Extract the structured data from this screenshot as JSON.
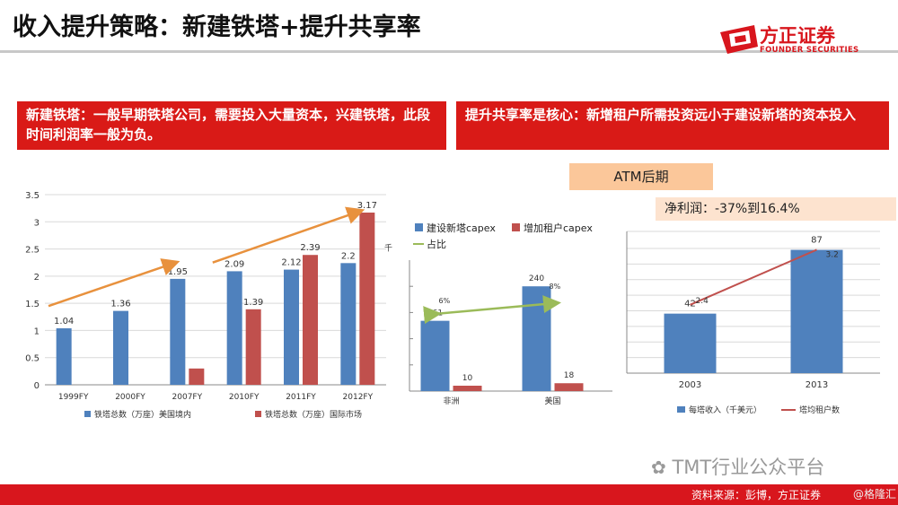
{
  "header": {
    "title": "收入提升策略：新建铁塔+提升共享率",
    "logo_name": "方正证券",
    "logo_sub": "FOUNDER SECURITIES"
  },
  "boxes": {
    "left": "新建铁塔：一般早期铁塔公司，需要投入大量资本，兴建铁塔，此段时间利润率一般为负。",
    "right": "提升共享率是核心：新增租户所需投资远小于建设新塔的资本投入"
  },
  "atm": {
    "label": "ATM后期",
    "net_profit": "净利润：-37%到16.4%"
  },
  "footer": {
    "source": "资料来源：彭博，方正证券",
    "watermark": "TMT行业公众平台",
    "watermark2": "@格隆汇"
  },
  "colors": {
    "blue": "#4f81bd",
    "red": "#c0504d",
    "orange": "#e8913d",
    "green": "#9bbb59",
    "brand": "#d8161d"
  },
  "chart_data": [
    {
      "type": "bar",
      "categories": [
        "1999FY",
        "2000FY",
        "2007FY",
        "2010FY",
        "2011FY",
        "2012FY"
      ],
      "series": [
        {
          "name": "铁塔总数（万座）美国境内",
          "values": [
            1.04,
            1.36,
            1.95,
            2.09,
            2.12,
            2.24
          ],
          "labels": [
            "1.04",
            "1.36",
            "1.95",
            "2.09",
            "2.12",
            "2.2"
          ]
        },
        {
          "name": "铁塔总数（万座）国际市场",
          "values": [
            null,
            null,
            0.3,
            1.39,
            2.39,
            3.17
          ],
          "labels": [
            "",
            "",
            "",
            "1.39",
            "2.39",
            "3.17"
          ]
        }
      ],
      "yticks": [
        "0",
        "0.5",
        "1",
        "1.5",
        "2",
        "2.5",
        "3",
        "3.5"
      ],
      "ylim": [
        0,
        3.5
      ],
      "extra_label": "千",
      "grid": true,
      "legend": "bottom"
    },
    {
      "type": "bar",
      "categories": [
        "非洲",
        "美国"
      ],
      "series": [
        {
          "name": "建设新塔capex",
          "values": [
            161,
            240
          ],
          "labels": [
            "161",
            "240"
          ]
        },
        {
          "name": "增加租户capex",
          "values": [
            10,
            18
          ],
          "labels": [
            "10",
            "18"
          ]
        },
        {
          "name": "占比",
          "type": "line",
          "values": [
            6,
            8
          ],
          "labels": [
            "6%",
            "8%"
          ]
        }
      ],
      "ylim": [
        0,
        300
      ],
      "legend": "top"
    },
    {
      "type": "bar",
      "categories": [
        "2003",
        "2013"
      ],
      "series": [
        {
          "name": "每塔收入（千美元）",
          "values": [
            42,
            87
          ],
          "labels": [
            "42",
            "87"
          ]
        },
        {
          "name": "塔均租户数",
          "type": "line",
          "values": [
            2.4,
            3.2
          ],
          "labels": [
            "2.4",
            "3.2"
          ]
        }
      ],
      "ylim": [
        0,
        100
      ],
      "legend": "bottom"
    }
  ]
}
